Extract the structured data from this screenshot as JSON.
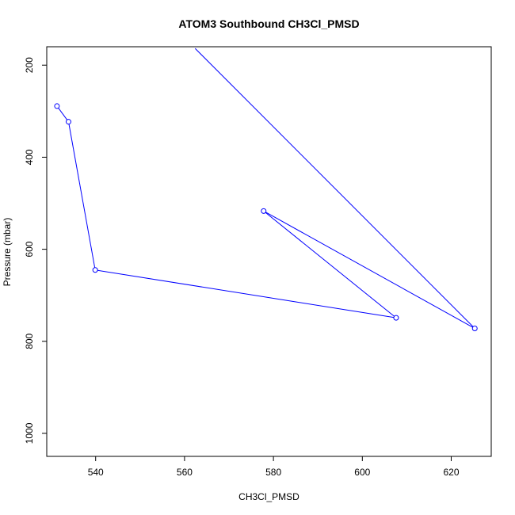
{
  "chart_data": {
    "type": "line",
    "title": "ATOM3 Southbound CH3Cl_PMSD",
    "xlabel": "CH3Cl_PMSD",
    "ylabel": "Pressure (mbar)",
    "xlim": [
      529,
      629
    ],
    "ylim": [
      1050,
      160
    ],
    "y_reversed": true,
    "x_ticks": [
      540,
      560,
      580,
      600,
      620
    ],
    "y_ticks": [
      200,
      400,
      600,
      800,
      1000
    ],
    "grid": false,
    "series": [
      {
        "color": "#0000ff",
        "marker": "open-circle",
        "points": [
          {
            "x": 531.3,
            "y": 289
          },
          {
            "x": 533.9,
            "y": 323
          },
          {
            "x": 539.9,
            "y": 645
          },
          {
            "x": 607.6,
            "y": 749
          },
          {
            "x": 577.8,
            "y": 517
          },
          {
            "x": 625.3,
            "y": 772
          },
          {
            "x": 562,
            "y": 160
          }
        ]
      }
    ]
  }
}
